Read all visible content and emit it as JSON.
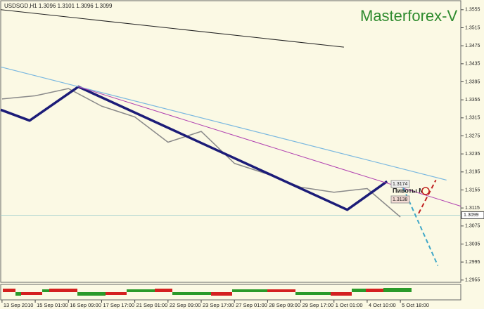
{
  "chart_data": {
    "type": "line",
    "title": "USDSGD,H1  1.3096 1.3101 1.3096 1.3099",
    "annotations": [
      "Masterforex-V",
      "Пивоты МФ",
      "1.3174",
      "1.3138"
    ],
    "current_price": 1.3099,
    "xlim": [
      -0.04,
      13.82
    ],
    "xticks": [
      {
        "value": 0,
        "label": "13 Sep 2010"
      },
      {
        "value": 1,
        "label": "15 Sep 01:00"
      },
      {
        "value": 2,
        "label": "16 Sep 09:00"
      },
      {
        "value": 3,
        "label": "17 Sep 17:00"
      },
      {
        "value": 4,
        "label": "21 Sep 01:00"
      },
      {
        "value": 5,
        "label": "22 Sep 09:00"
      },
      {
        "value": 6,
        "label": "23 Sep 17:00"
      },
      {
        "value": 7,
        "label": "27 Sep 01:00"
      },
      {
        "value": 8,
        "label": "28 Sep 09:00"
      },
      {
        "value": 9,
        "label": "29 Sep 17:00"
      },
      {
        "value": 10,
        "label": "1 Oct 01:00"
      },
      {
        "value": 11,
        "label": "4 Oct 10:00"
      },
      {
        "value": 12,
        "label": "5 Oct 18:00"
      }
    ],
    "ylim": [
      1.295,
      1.3575
    ],
    "yticks": [
      1.3555,
      1.3515,
      1.3475,
      1.3435,
      1.3395,
      1.3355,
      1.3315,
      1.3275,
      1.3235,
      1.3195,
      1.3155,
      1.3115,
      1.3075,
      1.3035,
      1.2995,
      1.2955
    ],
    "series": [
      {
        "color": "#8a8a8a",
        "width": 1.5,
        "dashed": false,
        "x": [
          0,
          1,
          2,
          3,
          4,
          5,
          6,
          7,
          8,
          9,
          10,
          11,
          12
        ],
        "values": [
          1.3357,
          1.3364,
          1.338,
          1.3341,
          1.3317,
          1.3261,
          1.3285,
          1.3214,
          1.319,
          1.3161,
          1.315,
          1.3158,
          1.3095
        ]
      },
      {
        "color": "#1c1c78",
        "width": 3.5,
        "dashed": false,
        "x": [
          -0.04,
          0.83,
          2.3,
          10.4,
          11.6
        ],
        "values": [
          1.3333,
          1.3309,
          1.3384,
          1.3111,
          1.3174
        ]
      },
      {
        "color": "#222222",
        "width": 1,
        "dashed": false,
        "x": [
          -0.04,
          10.3
        ],
        "values": [
          1.3555,
          1.3472
        ]
      },
      {
        "color": "#7ab8e0",
        "width": 1.2,
        "dashed": false,
        "x": [
          -0.04,
          13.39
        ],
        "values": [
          1.3428,
          1.3177
        ]
      },
      {
        "color": "#b040b0",
        "width": 1,
        "dashed": false,
        "x": [
          2.3,
          13.82
        ],
        "values": [
          1.3384,
          1.3119
        ]
      },
      {
        "color": "#40a8c8",
        "width": 2,
        "dashed": true,
        "x": [
          12.0,
          13.13
        ],
        "values": [
          1.3174,
          1.2987
        ]
      },
      {
        "color": "#c02020",
        "width": 2,
        "dashed": true,
        "x": [
          12.55,
          13.07
        ],
        "values": [
          1.3103,
          1.3177
        ]
      }
    ]
  }
}
